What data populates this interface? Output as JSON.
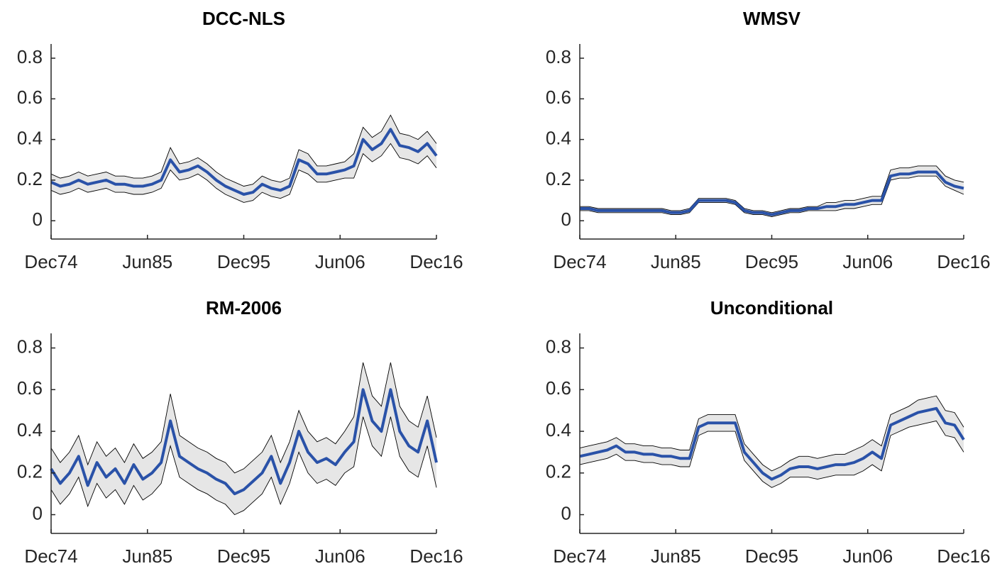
{
  "chart_data": [
    {
      "type": "line",
      "title": "DCC-NLS",
      "x": [
        "1974-12",
        "1975-12",
        "1976-12",
        "1977-12",
        "1978-12",
        "1979-12",
        "1980-12",
        "1981-12",
        "1982-12",
        "1983-12",
        "1984-12",
        "1985-12",
        "1986-12",
        "1987-12",
        "1988-12",
        "1989-12",
        "1990-12",
        "1991-12",
        "1992-12",
        "1993-12",
        "1994-12",
        "1995-12",
        "1996-12",
        "1997-12",
        "1998-12",
        "1999-12",
        "2000-12",
        "2001-12",
        "2002-12",
        "2003-12",
        "2004-12",
        "2005-12",
        "2006-12",
        "2007-12",
        "2008-12",
        "2009-12",
        "2010-12",
        "2011-12",
        "2012-12",
        "2013-12",
        "2014-12",
        "2015-12",
        "2016-12"
      ],
      "series": [
        {
          "color": "#2a52a8",
          "values": [
            0.19,
            0.17,
            0.18,
            0.2,
            0.18,
            0.19,
            0.2,
            0.18,
            0.18,
            0.17,
            0.17,
            0.18,
            0.2,
            0.3,
            0.24,
            0.25,
            0.27,
            0.24,
            0.2,
            0.17,
            0.15,
            0.13,
            0.14,
            0.18,
            0.16,
            0.15,
            0.17,
            0.3,
            0.28,
            0.23,
            0.23,
            0.24,
            0.25,
            0.27,
            0.4,
            0.35,
            0.38,
            0.45,
            0.37,
            0.36,
            0.34,
            0.38,
            0.32
          ]
        }
      ],
      "band": {
        "fill": "#e6e6e6",
        "line_color": "#000000",
        "lower": [
          0.15,
          0.13,
          0.14,
          0.16,
          0.14,
          0.15,
          0.16,
          0.14,
          0.14,
          0.13,
          0.13,
          0.14,
          0.16,
          0.25,
          0.2,
          0.21,
          0.23,
          0.2,
          0.16,
          0.13,
          0.11,
          0.09,
          0.1,
          0.14,
          0.12,
          0.11,
          0.13,
          0.25,
          0.23,
          0.19,
          0.19,
          0.2,
          0.21,
          0.21,
          0.33,
          0.29,
          0.32,
          0.38,
          0.31,
          0.3,
          0.28,
          0.32,
          0.26
        ],
        "upper": [
          0.23,
          0.21,
          0.22,
          0.24,
          0.22,
          0.23,
          0.24,
          0.22,
          0.22,
          0.21,
          0.21,
          0.22,
          0.24,
          0.36,
          0.28,
          0.29,
          0.31,
          0.28,
          0.24,
          0.21,
          0.19,
          0.17,
          0.18,
          0.22,
          0.2,
          0.19,
          0.21,
          0.35,
          0.33,
          0.27,
          0.27,
          0.28,
          0.29,
          0.33,
          0.46,
          0.41,
          0.44,
          0.52,
          0.43,
          0.42,
          0.4,
          0.44,
          0.38
        ]
      },
      "xlim": [
        "1974-12",
        "2016-12"
      ],
      "xticks": [
        {
          "value": "1974-12",
          "label": "Dec74"
        },
        {
          "value": "1985-06",
          "label": "Jun85"
        },
        {
          "value": "1995-12",
          "label": "Dec95"
        },
        {
          "value": "2006-06",
          "label": "Jun06"
        },
        {
          "value": "2016-12",
          "label": "Dec16"
        }
      ],
      "ylim": [
        -0.09,
        0.87
      ],
      "yticks": [
        0,
        0.2,
        0.4,
        0.6,
        0.8
      ]
    },
    {
      "type": "line",
      "title": "WMSV",
      "x": [
        "1974-12",
        "1975-12",
        "1976-12",
        "1977-12",
        "1978-12",
        "1979-12",
        "1980-12",
        "1981-12",
        "1982-12",
        "1983-12",
        "1984-12",
        "1985-12",
        "1986-12",
        "1987-12",
        "1988-12",
        "1989-12",
        "1990-12",
        "1991-12",
        "1992-12",
        "1993-12",
        "1994-12",
        "1995-12",
        "1996-12",
        "1997-12",
        "1998-12",
        "1999-12",
        "2000-12",
        "2001-12",
        "2002-12",
        "2003-12",
        "2004-12",
        "2005-12",
        "2006-12",
        "2007-12",
        "2008-12",
        "2009-12",
        "2010-12",
        "2011-12",
        "2012-12",
        "2013-12",
        "2014-12",
        "2015-12",
        "2016-12"
      ],
      "series": [
        {
          "color": "#2a52a8",
          "values": [
            0.06,
            0.06,
            0.05,
            0.05,
            0.05,
            0.05,
            0.05,
            0.05,
            0.05,
            0.05,
            0.04,
            0.04,
            0.05,
            0.1,
            0.1,
            0.1,
            0.1,
            0.09,
            0.05,
            0.04,
            0.04,
            0.03,
            0.04,
            0.05,
            0.05,
            0.06,
            0.06,
            0.07,
            0.07,
            0.08,
            0.08,
            0.09,
            0.1,
            0.1,
            0.22,
            0.23,
            0.23,
            0.24,
            0.24,
            0.24,
            0.19,
            0.17,
            0.16
          ]
        }
      ],
      "band": {
        "fill": "#e6e6e6",
        "line_color": "#000000",
        "lower": [
          0.05,
          0.05,
          0.04,
          0.04,
          0.04,
          0.04,
          0.04,
          0.04,
          0.04,
          0.04,
          0.03,
          0.03,
          0.04,
          0.09,
          0.09,
          0.09,
          0.09,
          0.08,
          0.04,
          0.03,
          0.03,
          0.02,
          0.03,
          0.04,
          0.04,
          0.05,
          0.05,
          0.05,
          0.05,
          0.06,
          0.06,
          0.07,
          0.08,
          0.08,
          0.2,
          0.21,
          0.21,
          0.22,
          0.22,
          0.22,
          0.17,
          0.15,
          0.13
        ],
        "upper": [
          0.07,
          0.07,
          0.06,
          0.06,
          0.06,
          0.06,
          0.06,
          0.06,
          0.06,
          0.06,
          0.05,
          0.05,
          0.06,
          0.11,
          0.11,
          0.11,
          0.11,
          0.1,
          0.06,
          0.05,
          0.05,
          0.04,
          0.05,
          0.06,
          0.06,
          0.07,
          0.07,
          0.09,
          0.09,
          0.1,
          0.1,
          0.11,
          0.12,
          0.12,
          0.25,
          0.26,
          0.26,
          0.27,
          0.27,
          0.27,
          0.22,
          0.2,
          0.19
        ]
      },
      "xlim": [
        "1974-12",
        "2016-12"
      ],
      "xticks": [
        {
          "value": "1974-12",
          "label": "Dec74"
        },
        {
          "value": "1985-06",
          "label": "Jun85"
        },
        {
          "value": "1995-12",
          "label": "Dec95"
        },
        {
          "value": "2006-06",
          "label": "Jun06"
        },
        {
          "value": "2016-12",
          "label": "Dec16"
        }
      ],
      "ylim": [
        -0.09,
        0.87
      ],
      "yticks": [
        0,
        0.2,
        0.4,
        0.6,
        0.8
      ]
    },
    {
      "type": "line",
      "title": "RM-2006",
      "x": [
        "1974-12",
        "1975-12",
        "1976-12",
        "1977-12",
        "1978-12",
        "1979-12",
        "1980-12",
        "1981-12",
        "1982-12",
        "1983-12",
        "1984-12",
        "1985-12",
        "1986-12",
        "1987-12",
        "1988-12",
        "1989-12",
        "1990-12",
        "1991-12",
        "1992-12",
        "1993-12",
        "1994-12",
        "1995-12",
        "1996-12",
        "1997-12",
        "1998-12",
        "1999-12",
        "2000-12",
        "2001-12",
        "2002-12",
        "2003-12",
        "2004-12",
        "2005-12",
        "2006-12",
        "2007-12",
        "2008-12",
        "2009-12",
        "2010-12",
        "2011-12",
        "2012-12",
        "2013-12",
        "2014-12",
        "2015-12",
        "2016-12"
      ],
      "series": [
        {
          "color": "#2a52a8",
          "values": [
            0.22,
            0.15,
            0.2,
            0.28,
            0.14,
            0.25,
            0.18,
            0.22,
            0.15,
            0.24,
            0.17,
            0.2,
            0.25,
            0.45,
            0.28,
            0.25,
            0.22,
            0.2,
            0.17,
            0.15,
            0.1,
            0.12,
            0.16,
            0.2,
            0.28,
            0.15,
            0.25,
            0.4,
            0.3,
            0.25,
            0.27,
            0.24,
            0.3,
            0.35,
            0.6,
            0.45,
            0.4,
            0.6,
            0.4,
            0.33,
            0.3,
            0.45,
            0.25
          ]
        }
      ],
      "band": {
        "fill": "#e6e6e6",
        "line_color": "#000000",
        "lower": [
          0.12,
          0.05,
          0.1,
          0.18,
          0.04,
          0.15,
          0.08,
          0.12,
          0.05,
          0.14,
          0.07,
          0.1,
          0.15,
          0.33,
          0.18,
          0.15,
          0.12,
          0.1,
          0.07,
          0.05,
          0.0,
          0.02,
          0.06,
          0.1,
          0.18,
          0.05,
          0.15,
          0.3,
          0.2,
          0.15,
          0.17,
          0.14,
          0.2,
          0.23,
          0.47,
          0.33,
          0.28,
          0.47,
          0.28,
          0.21,
          0.18,
          0.33,
          0.13
        ],
        "upper": [
          0.32,
          0.25,
          0.3,
          0.38,
          0.24,
          0.35,
          0.28,
          0.32,
          0.25,
          0.34,
          0.27,
          0.3,
          0.35,
          0.58,
          0.38,
          0.35,
          0.32,
          0.3,
          0.27,
          0.25,
          0.2,
          0.22,
          0.26,
          0.3,
          0.38,
          0.25,
          0.35,
          0.5,
          0.4,
          0.35,
          0.37,
          0.34,
          0.4,
          0.47,
          0.73,
          0.57,
          0.52,
          0.73,
          0.52,
          0.45,
          0.42,
          0.57,
          0.37
        ]
      },
      "xlim": [
        "1974-12",
        "2016-12"
      ],
      "xticks": [
        {
          "value": "1974-12",
          "label": "Dec74"
        },
        {
          "value": "1985-06",
          "label": "Jun85"
        },
        {
          "value": "1995-12",
          "label": "Dec95"
        },
        {
          "value": "2006-06",
          "label": "Jun06"
        },
        {
          "value": "2016-12",
          "label": "Dec16"
        }
      ],
      "ylim": [
        -0.09,
        0.87
      ],
      "yticks": [
        0,
        0.2,
        0.4,
        0.6,
        0.8
      ]
    },
    {
      "type": "line",
      "title": "Unconditional",
      "x": [
        "1974-12",
        "1975-12",
        "1976-12",
        "1977-12",
        "1978-12",
        "1979-12",
        "1980-12",
        "1981-12",
        "1982-12",
        "1983-12",
        "1984-12",
        "1985-12",
        "1986-12",
        "1987-12",
        "1988-12",
        "1989-12",
        "1990-12",
        "1991-12",
        "1992-12",
        "1993-12",
        "1994-12",
        "1995-12",
        "1996-12",
        "1997-12",
        "1998-12",
        "1999-12",
        "2000-12",
        "2001-12",
        "2002-12",
        "2003-12",
        "2004-12",
        "2005-12",
        "2006-12",
        "2007-12",
        "2008-12",
        "2009-12",
        "2010-12",
        "2011-12",
        "2012-12",
        "2013-12",
        "2014-12",
        "2015-12",
        "2016-12"
      ],
      "series": [
        {
          "color": "#2a52a8",
          "values": [
            0.28,
            0.29,
            0.3,
            0.31,
            0.33,
            0.3,
            0.3,
            0.29,
            0.29,
            0.28,
            0.28,
            0.27,
            0.27,
            0.42,
            0.44,
            0.44,
            0.44,
            0.44,
            0.3,
            0.25,
            0.2,
            0.17,
            0.19,
            0.22,
            0.23,
            0.23,
            0.22,
            0.23,
            0.24,
            0.24,
            0.25,
            0.27,
            0.3,
            0.27,
            0.43,
            0.45,
            0.47,
            0.49,
            0.5,
            0.51,
            0.44,
            0.43,
            0.36
          ]
        }
      ],
      "band": {
        "fill": "#e6e6e6",
        "line_color": "#000000",
        "lower": [
          0.24,
          0.25,
          0.26,
          0.27,
          0.29,
          0.26,
          0.26,
          0.25,
          0.25,
          0.24,
          0.24,
          0.23,
          0.23,
          0.38,
          0.4,
          0.4,
          0.4,
          0.4,
          0.26,
          0.21,
          0.16,
          0.13,
          0.15,
          0.18,
          0.18,
          0.18,
          0.17,
          0.18,
          0.19,
          0.19,
          0.19,
          0.21,
          0.24,
          0.21,
          0.38,
          0.4,
          0.42,
          0.43,
          0.44,
          0.45,
          0.38,
          0.37,
          0.3
        ],
        "upper": [
          0.32,
          0.33,
          0.34,
          0.35,
          0.37,
          0.34,
          0.34,
          0.33,
          0.33,
          0.32,
          0.32,
          0.31,
          0.31,
          0.46,
          0.48,
          0.48,
          0.48,
          0.48,
          0.34,
          0.29,
          0.24,
          0.21,
          0.23,
          0.26,
          0.28,
          0.28,
          0.27,
          0.28,
          0.29,
          0.29,
          0.31,
          0.33,
          0.36,
          0.33,
          0.48,
          0.5,
          0.52,
          0.55,
          0.56,
          0.57,
          0.5,
          0.49,
          0.42
        ]
      },
      "xlim": [
        "1974-12",
        "2016-12"
      ],
      "xticks": [
        {
          "value": "1974-12",
          "label": "Dec74"
        },
        {
          "value": "1985-06",
          "label": "Jun85"
        },
        {
          "value": "1995-12",
          "label": "Dec95"
        },
        {
          "value": "2006-06",
          "label": "Jun06"
        },
        {
          "value": "2016-12",
          "label": "Dec16"
        }
      ],
      "ylim": [
        -0.09,
        0.87
      ],
      "yticks": [
        0,
        0.2,
        0.4,
        0.6,
        0.8
      ]
    }
  ]
}
